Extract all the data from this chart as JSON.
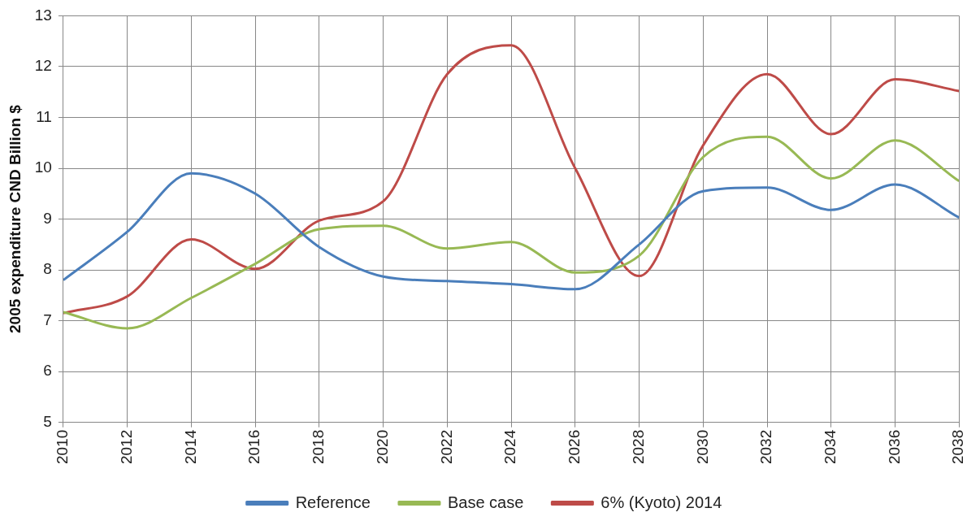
{
  "chart_data": {
    "type": "line",
    "ylabel": "2005 expenditure CND Billion $",
    "x": [
      2010,
      2012,
      2014,
      2016,
      2018,
      2020,
      2022,
      2024,
      2026,
      2028,
      2030,
      2032,
      2034,
      2036,
      2038
    ],
    "series": [
      {
        "name": "Reference",
        "color": "#4a7ebb",
        "values": [
          7.8,
          8.75,
          9.9,
          9.5,
          8.45,
          7.87,
          7.78,
          7.72,
          7.62,
          8.5,
          9.55,
          9.62,
          9.18,
          9.68,
          9.03
        ]
      },
      {
        "name": "Base case",
        "color": "#98b954",
        "values": [
          7.17,
          6.85,
          7.45,
          8.12,
          8.8,
          8.87,
          8.42,
          8.55,
          7.95,
          8.28,
          10.22,
          10.62,
          9.8,
          10.55,
          9.75
        ]
      },
      {
        "name": "6% (Kyoto) 2014",
        "color": "#be4b48",
        "values": [
          7.15,
          7.48,
          8.6,
          8.02,
          8.97,
          9.35,
          11.85,
          12.42,
          10.0,
          7.88,
          10.45,
          11.85,
          10.67,
          11.75,
          11.52
        ]
      }
    ],
    "xlim": [
      2010,
      2038
    ],
    "xticks": [
      2010,
      2012,
      2014,
      2016,
      2018,
      2020,
      2022,
      2024,
      2026,
      2028,
      2030,
      2032,
      2034,
      2036,
      2038
    ],
    "ylim": [
      5,
      13
    ],
    "yticks": [
      5,
      6,
      7,
      8,
      9,
      10,
      11,
      12,
      13
    ],
    "grid": true,
    "legend": "bottom",
    "marker": "none",
    "line_style": "solid"
  }
}
